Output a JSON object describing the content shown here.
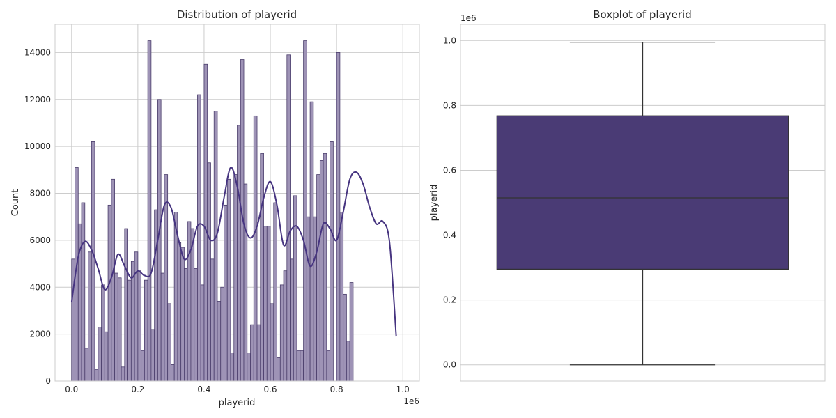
{
  "chart_data": [
    {
      "type": "bar",
      "title": "Distribution of playerid",
      "xlabel": "playerid",
      "ylabel": "Count",
      "x_offset_label": "1e6",
      "xlim": [
        -0.05,
        1.05
      ],
      "ylim": [
        0,
        15200
      ],
      "xticks": [
        0.0,
        0.2,
        0.4,
        0.6,
        0.8,
        1.0
      ],
      "xtick_labels": [
        "0.0",
        "0.2",
        "0.4",
        "0.6",
        "0.8",
        "1.0"
      ],
      "yticks": [
        0,
        2000,
        4000,
        6000,
        8000,
        10000,
        12000,
        14000
      ],
      "ytick_labels": [
        "0",
        "2000",
        "4000",
        "6000",
        "8000",
        "10000",
        "12000",
        "14000"
      ],
      "bin_start": 0.0,
      "bin_width": 0.01,
      "values": [
        5200,
        9100,
        6700,
        7600,
        1400,
        5500,
        10200,
        500,
        2300,
        4100,
        2100,
        7500,
        8600,
        4600,
        4400,
        600,
        6500,
        4300,
        5100,
        5500,
        4700,
        1300,
        4300,
        14500,
        2200,
        7300,
        12000,
        4600,
        8800,
        3300,
        700,
        7200,
        5900,
        5700,
        4800,
        6800,
        6500,
        4800,
        12200,
        4100,
        13500,
        9300,
        5200,
        11500,
        3400,
        4000,
        7500,
        8600,
        1200,
        8800,
        10900,
        13700,
        8400,
        1200,
        2400,
        11300,
        2400,
        9700,
        6600,
        6600,
        3300,
        7600,
        1000,
        4100,
        4700,
        13900,
        5200,
        7900,
        1300,
        1300,
        14500,
        7000,
        11900,
        7000,
        8800,
        9400,
        9700,
        1300,
        10200,
        0,
        14000,
        7200,
        3700,
        1700,
        4200
      ],
      "kde": {
        "x": [
          0.0,
          0.02,
          0.04,
          0.06,
          0.08,
          0.1,
          0.12,
          0.14,
          0.16,
          0.18,
          0.2,
          0.22,
          0.24,
          0.26,
          0.28,
          0.3,
          0.32,
          0.34,
          0.36,
          0.38,
          0.4,
          0.42,
          0.44,
          0.46,
          0.48,
          0.5,
          0.52,
          0.54,
          0.56,
          0.58,
          0.6,
          0.62,
          0.64,
          0.66,
          0.68,
          0.7,
          0.72,
          0.74,
          0.76,
          0.78,
          0.8,
          0.82,
          0.84,
          0.86,
          0.88,
          0.9,
          0.92,
          0.94,
          0.96,
          0.98
        ],
        "y": [
          3350,
          5300,
          5950,
          5600,
          4800,
          3900,
          4400,
          5400,
          4900,
          4400,
          4700,
          4500,
          4600,
          6000,
          7500,
          7400,
          6200,
          5200,
          5600,
          6600,
          6600,
          6000,
          6300,
          7800,
          9100,
          8300,
          6700,
          6100,
          6600,
          7800,
          8500,
          7500,
          5800,
          6400,
          6600,
          6000,
          4900,
          5500,
          6700,
          6500,
          6000,
          7200,
          8600,
          8900,
          8400,
          7400,
          6700,
          6800,
          5900,
          1900
        ]
      }
    },
    {
      "type": "box",
      "title": "Boxplot of playerid",
      "ylabel": "playerid",
      "y_offset_label": "1e6",
      "ylim": [
        -0.05,
        1.05
      ],
      "yticks": [
        0.0,
        0.2,
        0.4,
        0.6,
        0.8,
        1.0
      ],
      "ytick_labels": [
        "0.0",
        "0.2",
        "0.4",
        "0.6",
        "0.8",
        "1.0"
      ],
      "whisker_low": 0.0,
      "q1": 0.295,
      "median": 0.515,
      "q3": 0.768,
      "whisker_high": 0.995
    }
  ],
  "colors": {
    "hist_fill": "#9e93b6",
    "hist_edge": "#4a3d6b",
    "kde_line": "#463480",
    "box_fill": "#4a3b75",
    "box_line": "#333333",
    "grid": "#cccccc",
    "text": "#262626"
  }
}
